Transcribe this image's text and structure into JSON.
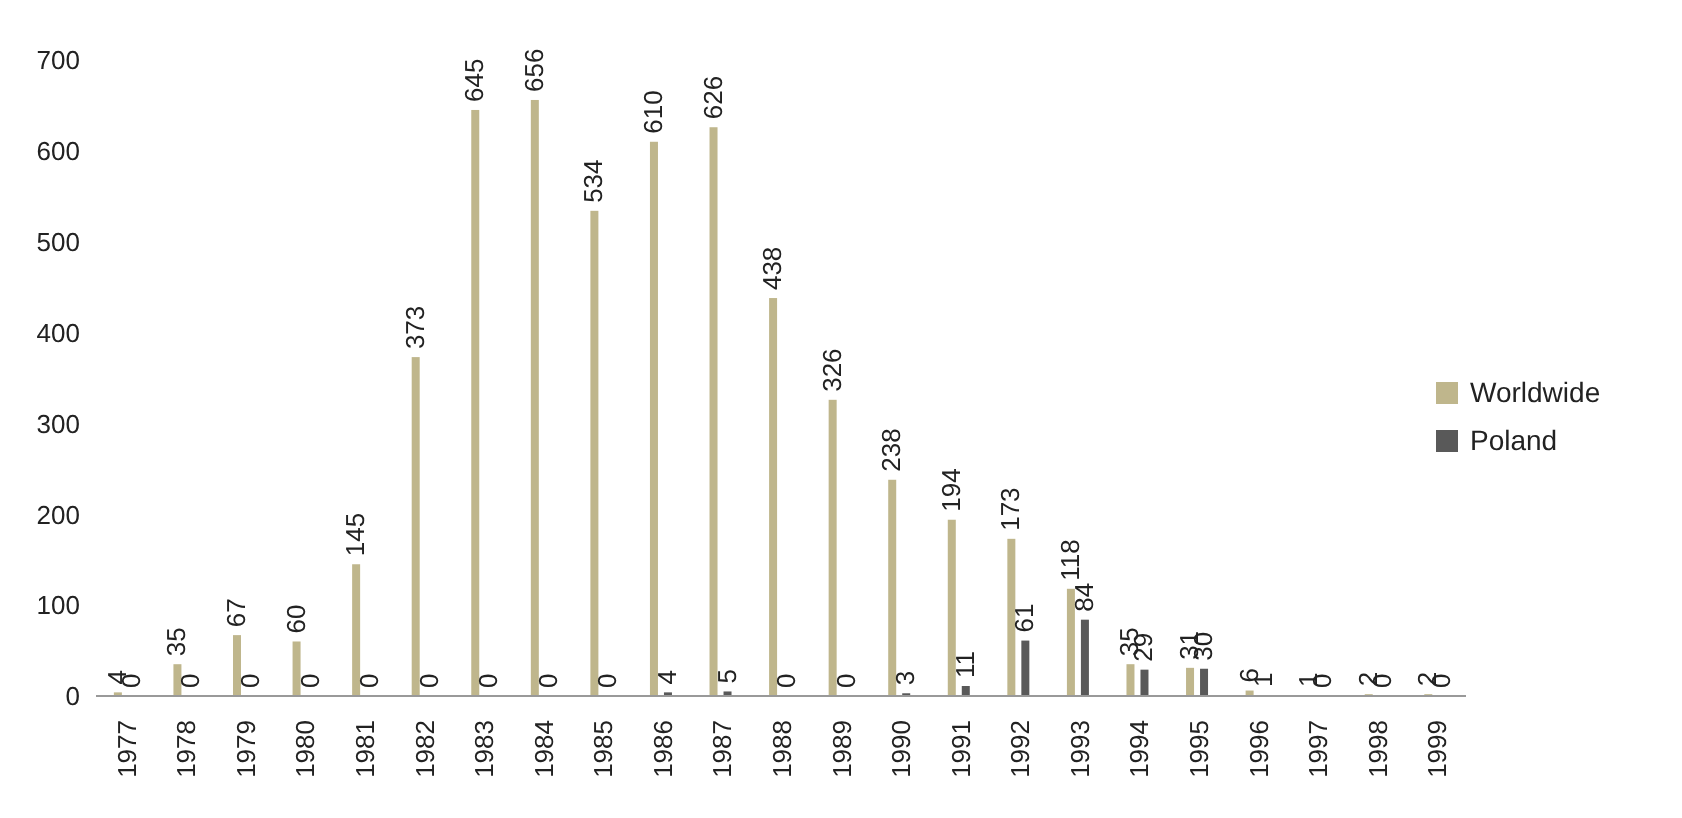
{
  "chart_data": {
    "type": "bar",
    "categories": [
      "1977",
      "1978",
      "1979",
      "1980",
      "1981",
      "1982",
      "1983",
      "1984",
      "1985",
      "1986",
      "1987",
      "1988",
      "1989",
      "1990",
      "1991",
      "1992",
      "1993",
      "1994",
      "1995",
      "1996",
      "1997",
      "1998",
      "1999"
    ],
    "series": [
      {
        "name": "Worldwide",
        "color": "#bfb68c",
        "values": [
          4,
          35,
          67,
          60,
          145,
          373,
          645,
          656,
          534,
          610,
          626,
          438,
          326,
          238,
          194,
          173,
          118,
          35,
          31,
          6,
          1,
          2,
          2
        ]
      },
      {
        "name": "Poland",
        "color": "#595959",
        "values": [
          0,
          0,
          0,
          0,
          0,
          0,
          0,
          0,
          0,
          4,
          5,
          0,
          0,
          3,
          11,
          61,
          84,
          29,
          30,
          1,
          0,
          0,
          0
        ]
      }
    ],
    "ylim": [
      0,
      700
    ],
    "yticks": [
      0,
      100,
      200,
      300,
      400,
      500,
      600,
      700
    ],
    "legend": "right",
    "data_labels": true
  }
}
